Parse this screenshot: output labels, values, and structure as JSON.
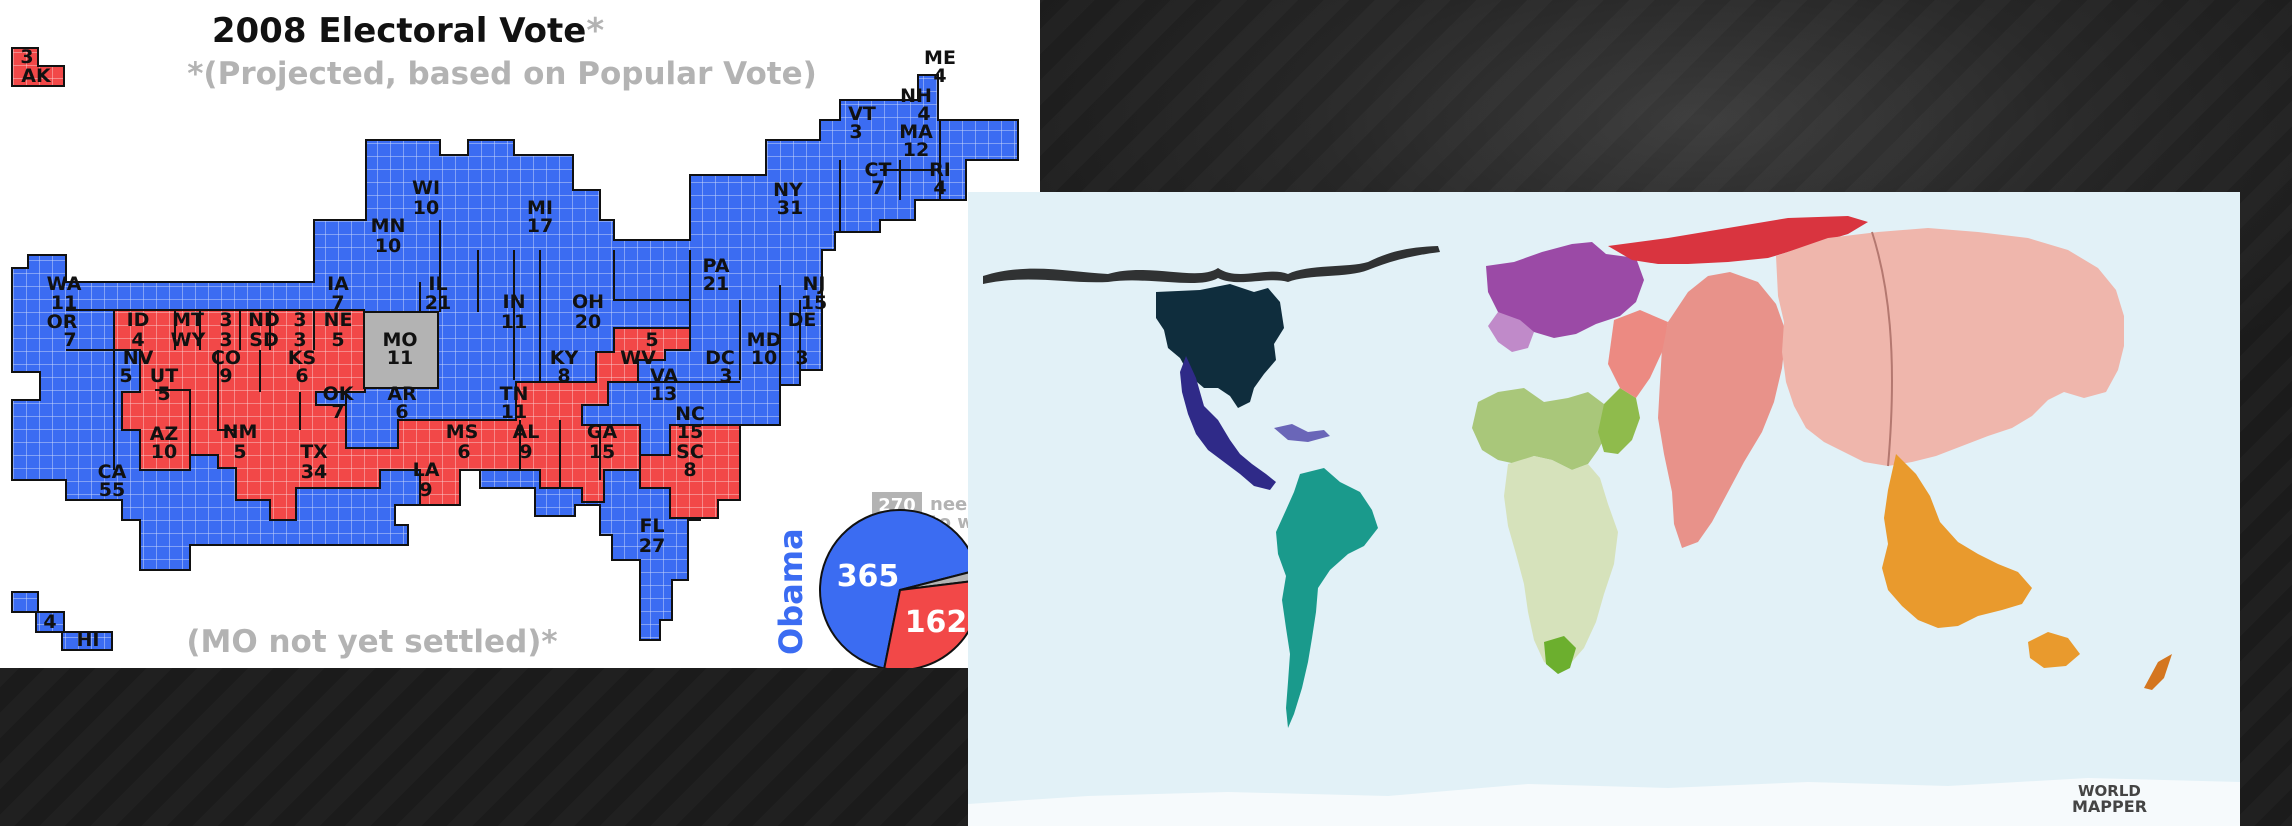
{
  "electoral_map": {
    "title": "2008 Electoral Vote",
    "title_mark": "*",
    "subtitle": "*(Projected, based on Popular Vote)",
    "footnote": "(MO not yet settled)*",
    "threshold_value": "270",
    "threshold_text": [
      "nee",
      "to w"
    ],
    "pie": {
      "obama_label": "Obama",
      "obama_votes": "365",
      "mccain_votes": "162",
      "obama_votes_num": 365,
      "mccain_votes_num": 162,
      "undecided_votes_num": 11
    },
    "colors": {
      "democrat": "#3b6cf2",
      "republican": "#f24848",
      "undecided": "#b3b3b3"
    },
    "states": [
      {
        "abbr": "ME",
        "votes": "4",
        "party": "dem"
      },
      {
        "abbr": "NH",
        "votes": "4",
        "party": "dem"
      },
      {
        "abbr": "VT",
        "votes": "3",
        "party": "dem"
      },
      {
        "abbr": "MA",
        "votes": "12",
        "party": "dem"
      },
      {
        "abbr": "CT",
        "votes": "7",
        "party": "dem"
      },
      {
        "abbr": "RI",
        "votes": "4",
        "party": "dem"
      },
      {
        "abbr": "NY",
        "votes": "31",
        "party": "dem"
      },
      {
        "abbr": "WI",
        "votes": "10",
        "party": "dem"
      },
      {
        "abbr": "MI",
        "votes": "17",
        "party": "dem"
      },
      {
        "abbr": "MN",
        "votes": "10",
        "party": "dem"
      },
      {
        "abbr": "WA",
        "votes": "11",
        "party": "dem"
      },
      {
        "abbr": "OR",
        "votes": "7",
        "party": "dem"
      },
      {
        "abbr": "IA",
        "votes": "7",
        "party": "dem"
      },
      {
        "abbr": "IL",
        "votes": "21",
        "party": "dem"
      },
      {
        "abbr": "IN",
        "votes": "11",
        "party": "dem"
      },
      {
        "abbr": "OH",
        "votes": "20",
        "party": "dem"
      },
      {
        "abbr": "PA",
        "votes": "21",
        "party": "dem"
      },
      {
        "abbr": "NJ",
        "votes": "15",
        "party": "dem"
      },
      {
        "abbr": "DE",
        "votes": "3",
        "party": "dem"
      },
      {
        "abbr": "MD",
        "votes": "10",
        "party": "dem"
      },
      {
        "abbr": "DC",
        "votes": "3",
        "party": "dem"
      },
      {
        "abbr": "VA",
        "votes": "13",
        "party": "dem"
      },
      {
        "abbr": "NC",
        "votes": "15",
        "party": "dem"
      },
      {
        "abbr": "NV",
        "votes": "5",
        "party": "dem"
      },
      {
        "abbr": "CO",
        "votes": "9",
        "party": "dem"
      },
      {
        "abbr": "NM",
        "votes": "5",
        "party": "dem"
      },
      {
        "abbr": "CA",
        "votes": "55",
        "party": "dem"
      },
      {
        "abbr": "FL",
        "votes": "27",
        "party": "dem"
      },
      {
        "abbr": "HI",
        "votes": "4",
        "party": "dem"
      },
      {
        "abbr": "ID",
        "votes": "4",
        "party": "rep"
      },
      {
        "abbr": "MT",
        "votes": "3",
        "party": "rep"
      },
      {
        "abbr": "ND",
        "votes": "3",
        "party": "rep"
      },
      {
        "abbr": "WY",
        "votes": "3",
        "party": "rep"
      },
      {
        "abbr": "SD",
        "votes": "3",
        "party": "rep"
      },
      {
        "abbr": "NE",
        "votes": "5",
        "party": "rep"
      },
      {
        "abbr": "UT",
        "votes": "5",
        "party": "rep"
      },
      {
        "abbr": "KS",
        "votes": "6",
        "party": "rep"
      },
      {
        "abbr": "OK",
        "votes": "7",
        "party": "rep"
      },
      {
        "abbr": "AR",
        "votes": "6",
        "party": "rep"
      },
      {
        "abbr": "AZ",
        "votes": "10",
        "party": "rep"
      },
      {
        "abbr": "TX",
        "votes": "34",
        "party": "rep"
      },
      {
        "abbr": "LA",
        "votes": "9",
        "party": "rep"
      },
      {
        "abbr": "MS",
        "votes": "6",
        "party": "rep"
      },
      {
        "abbr": "AL",
        "votes": "9",
        "party": "rep"
      },
      {
        "abbr": "GA",
        "votes": "15",
        "party": "rep"
      },
      {
        "abbr": "SC",
        "votes": "8",
        "party": "rep"
      },
      {
        "abbr": "TN",
        "votes": "11",
        "party": "rep"
      },
      {
        "abbr": "KY",
        "votes": "8",
        "party": "rep"
      },
      {
        "abbr": "WV",
        "votes": "5",
        "party": "rep"
      },
      {
        "abbr": "AK",
        "votes": "3",
        "party": "rep"
      },
      {
        "abbr": "MO",
        "votes": "11",
        "party": "undecided"
      }
    ]
  },
  "worldmapper": {
    "logo_text_line1": "WORLD",
    "logo_text_line2": "MAPPER",
    "region_colors": {
      "north_america": "#0f2d3d",
      "central_america": "#2f2a88",
      "south_america": "#1a9a8c",
      "europe": "#9b4aa6",
      "russia_east": "#d9343f",
      "middle_east_africa_north": "#a9c77a",
      "africa": "#d6e2bb",
      "south_asia": "#e8928a",
      "east_asia": "#efb6ac",
      "southeast_asia_oceania": "#e99a2d",
      "background": "#e2f1f7"
    }
  }
}
